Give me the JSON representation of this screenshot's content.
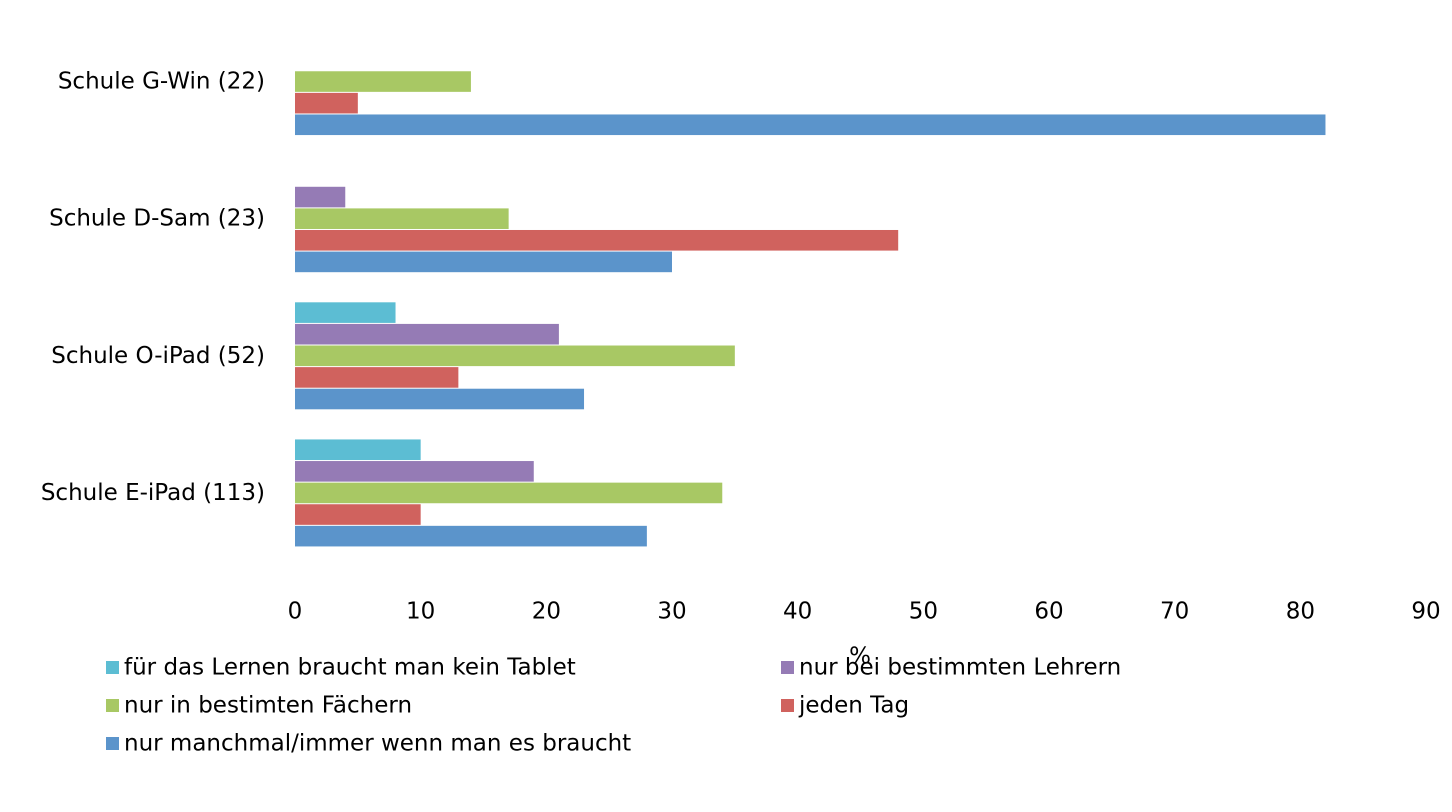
{
  "chart_data": {
    "type": "bar",
    "orientation": "horizontal",
    "x_label": "%",
    "categories": [
      "Schule G-Win (22)",
      "Schule D-Sam (23)",
      "Schule O-iPad (52)",
      "Schule E-iPad (113)"
    ],
    "series": [
      {
        "name": "für das Lernen braucht man kein Tablet",
        "color": "#5cbdd3",
        "values": [
          0,
          0,
          8,
          10
        ]
      },
      {
        "name": "nur bei bestimmten Lehrern",
        "color": "#957bb5",
        "values": [
          0,
          4,
          21,
          19
        ]
      },
      {
        "name": "nur in bestimten Fächern",
        "color": "#a8c864",
        "values": [
          14,
          17,
          35,
          34
        ]
      },
      {
        "name": "jeden Tag",
        "color": "#d0625e",
        "values": [
          5,
          48,
          13,
          10
        ]
      },
      {
        "name": "nur manchmal/immer wenn man es braucht",
        "color": "#5b94cb",
        "values": [
          82,
          30,
          23,
          28
        ]
      }
    ],
    "xlim": [
      0,
      90
    ],
    "xticks": [
      0,
      10,
      20,
      30,
      40,
      50,
      60,
      70,
      80,
      90
    ],
    "grid": false
  }
}
